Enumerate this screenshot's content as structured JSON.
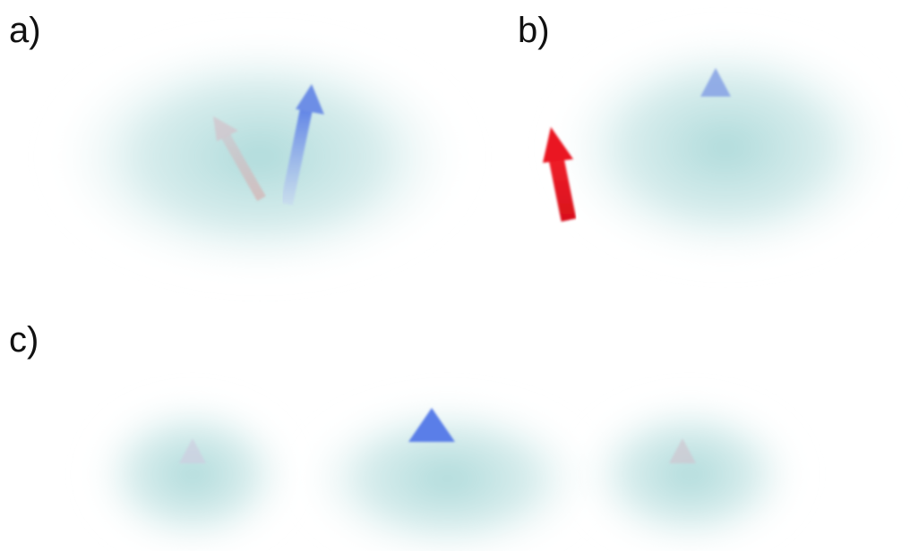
{
  "panels": {
    "a": {
      "label": "a)"
    },
    "b": {
      "label": "b)"
    },
    "c": {
      "label": "c)"
    }
  },
  "colors": {
    "cloud": "#9fd3d3",
    "spin_blue": "#5b7fe6",
    "spin_red_faint": "#d88a8a",
    "spin_red_strong": "#e8111d",
    "text": "#111111"
  }
}
